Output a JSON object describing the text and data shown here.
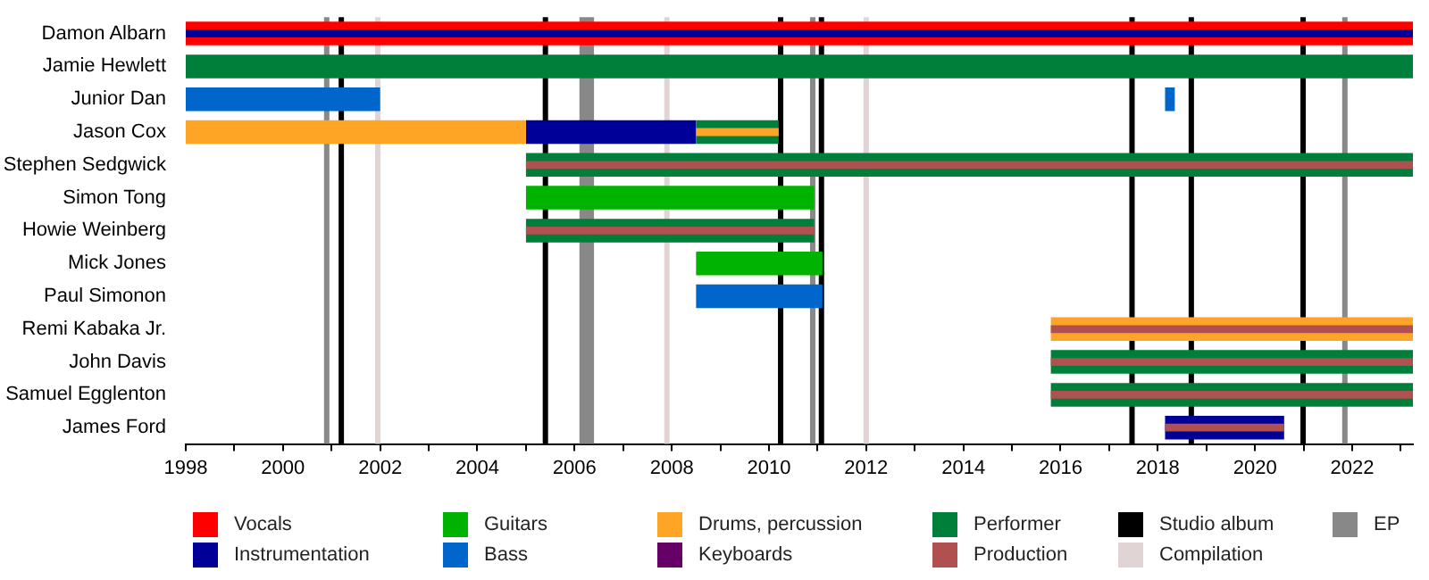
{
  "chart_data": {
    "type": "bar",
    "orientation": "horizontal",
    "legend": "bottom",
    "categories": [
      "Damon Albarn",
      "Jamie Hewlett",
      "Junior Dan",
      "Jason Cox",
      "Stephen Sedgwick",
      "Simon Tong",
      "Howie Weinberg",
      "Mick Jones",
      "Paul Simonon",
      "Remi Kabaka Jr.",
      "John Davis",
      "Samuel Egglenton",
      "James Ford"
    ],
    "xlim": [
      1998,
      2023.25
    ],
    "xticks": [
      1998,
      {
        "value": 1999,
        "label": null
      },
      2000,
      {
        "value": 2001,
        "label": null
      },
      2002,
      {
        "value": 2003,
        "label": null
      },
      2004,
      {
        "value": 2005,
        "label": null
      },
      2006,
      {
        "value": 2007,
        "label": null
      },
      2008,
      {
        "value": 2009,
        "label": null
      },
      2010,
      {
        "value": 2011,
        "label": null
      },
      2012,
      {
        "value": 2013,
        "label": null
      },
      2014,
      {
        "value": 2015,
        "label": null
      },
      2016,
      {
        "value": 2017,
        "label": null
      },
      2018,
      {
        "value": 2019,
        "label": null
      },
      2020,
      {
        "value": 2021,
        "label": null
      },
      2022,
      {
        "value": 2023,
        "label": null
      }
    ],
    "series": [
      {
        "name": "Vocals",
        "color": "#ff0000",
        "base": [
          1998,
          null,
          null,
          null,
          null,
          null,
          null,
          null,
          null,
          null,
          null,
          null,
          null
        ],
        "values": [
          25.25,
          null,
          null,
          null,
          null,
          null,
          null,
          null,
          null,
          null,
          null,
          null,
          null
        ]
      },
      {
        "name": "Instrumentation",
        "color": "#000099",
        "base": [
          1998,
          null,
          null,
          2005,
          null,
          null,
          null,
          null,
          null,
          null,
          null,
          null,
          2018.15
        ],
        "values": [
          25.25,
          null,
          null,
          3.5,
          null,
          null,
          null,
          null,
          null,
          null,
          null,
          null,
          2.45
        ]
      },
      {
        "name": "Guitars",
        "color": "#00b300",
        "base": [
          null,
          null,
          null,
          null,
          null,
          2005,
          null,
          2008.5,
          null,
          null,
          null,
          null,
          null
        ],
        "values": [
          null,
          null,
          null,
          null,
          null,
          5.93,
          null,
          2.6,
          null,
          null,
          null,
          null,
          null
        ]
      },
      {
        "name": "Bass",
        "color": "#0066cc",
        "base": [
          null,
          null,
          1998,
          null,
          null,
          null,
          null,
          null,
          2008.5,
          null,
          null,
          null,
          null
        ],
        "values": [
          null,
          null,
          4,
          null,
          null,
          null,
          null,
          null,
          2.6,
          null,
          null,
          null,
          null
        ]
      },
      {
        "color": "#0066cc",
        "base": [
          null,
          null,
          2018.15,
          null,
          null,
          null,
          null,
          null,
          null,
          null,
          null,
          null,
          null
        ],
        "values": [
          null,
          null,
          0.2,
          null,
          null,
          null,
          null,
          null,
          null,
          null,
          null,
          null,
          null
        ]
      },
      {
        "name": "Drums, percussion",
        "color": "#ffa526",
        "base": [
          null,
          null,
          null,
          1998,
          null,
          null,
          null,
          null,
          null,
          2015.8,
          null,
          null,
          null
        ],
        "values": [
          null,
          null,
          null,
          7,
          null,
          null,
          null,
          null,
          null,
          7.45,
          null,
          null,
          null
        ]
      },
      {
        "name": "Keyboards",
        "color": "#660066",
        "base": [
          null,
          null,
          null,
          null,
          null,
          null,
          null,
          null,
          null,
          null,
          null,
          null,
          null
        ],
        "values": [
          null,
          null,
          null,
          null,
          null,
          null,
          null,
          null,
          null,
          null,
          null,
          null,
          null
        ]
      },
      {
        "name": "Performer",
        "color": "#007f3b",
        "base": [
          null,
          1998,
          null,
          2008.5,
          2005,
          null,
          2005,
          null,
          null,
          null,
          2015.8,
          2015.8,
          null
        ],
        "values": [
          null,
          25.25,
          null,
          1.7,
          18.25,
          null,
          5.93,
          null,
          null,
          null,
          7.45,
          7.45,
          null
        ]
      },
      {
        "color": "#ffa526",
        "base": [
          null,
          null,
          null,
          2008.5,
          null,
          null,
          null,
          null,
          null,
          null,
          null,
          null,
          null
        ],
        "values": [
          null,
          null,
          null,
          1.7,
          null,
          null,
          null,
          null,
          null,
          null,
          null,
          null,
          null
        ]
      },
      {
        "name": "Production",
        "color": "#b05050",
        "base": [
          null,
          null,
          null,
          null,
          2005,
          null,
          2005,
          null,
          null,
          2015.8,
          2015.8,
          2015.8,
          2018.15
        ],
        "values": [
          null,
          null,
          null,
          null,
          18.25,
          null,
          5.93,
          null,
          null,
          7.45,
          7.45,
          7.45,
          2.45
        ]
      }
    ],
    "ref_lines": [
      {
        "axis": "x",
        "value": 2001.2,
        "label": "Studio album",
        "color": "#000000"
      },
      {
        "axis": "x",
        "value": 2005.4,
        "color": "#000000"
      },
      {
        "axis": "x",
        "value": 2010.24,
        "color": "#000000"
      },
      {
        "axis": "x",
        "value": 2011.08,
        "color": "#000000"
      },
      {
        "axis": "x",
        "value": 2017.47,
        "color": "#000000"
      },
      {
        "axis": "x",
        "value": 2018.69,
        "color": "#000000"
      },
      {
        "axis": "x",
        "value": 2020.99,
        "color": "#000000"
      },
      {
        "axis": "x",
        "value": 2001.95,
        "label": "Compilation",
        "color": "#e0d4d4"
      },
      {
        "axis": "x",
        "value": 2007.9,
        "color": "#e0d4d4"
      },
      {
        "axis": "x",
        "value": 2012,
        "color": "#e0d4d4"
      },
      {
        "axis": "x",
        "value": 2000.9,
        "label": "EP",
        "color": "#888888"
      },
      {
        "axis": "x",
        "value": 2010.9,
        "color": "#888888"
      },
      {
        "axis": "x",
        "value": 2021.85,
        "color": "#888888"
      }
    ],
    "bands": [
      {
        "axis": "x",
        "from": 2006.1,
        "to": 2006.4,
        "color": "#888888"
      }
    ]
  }
}
